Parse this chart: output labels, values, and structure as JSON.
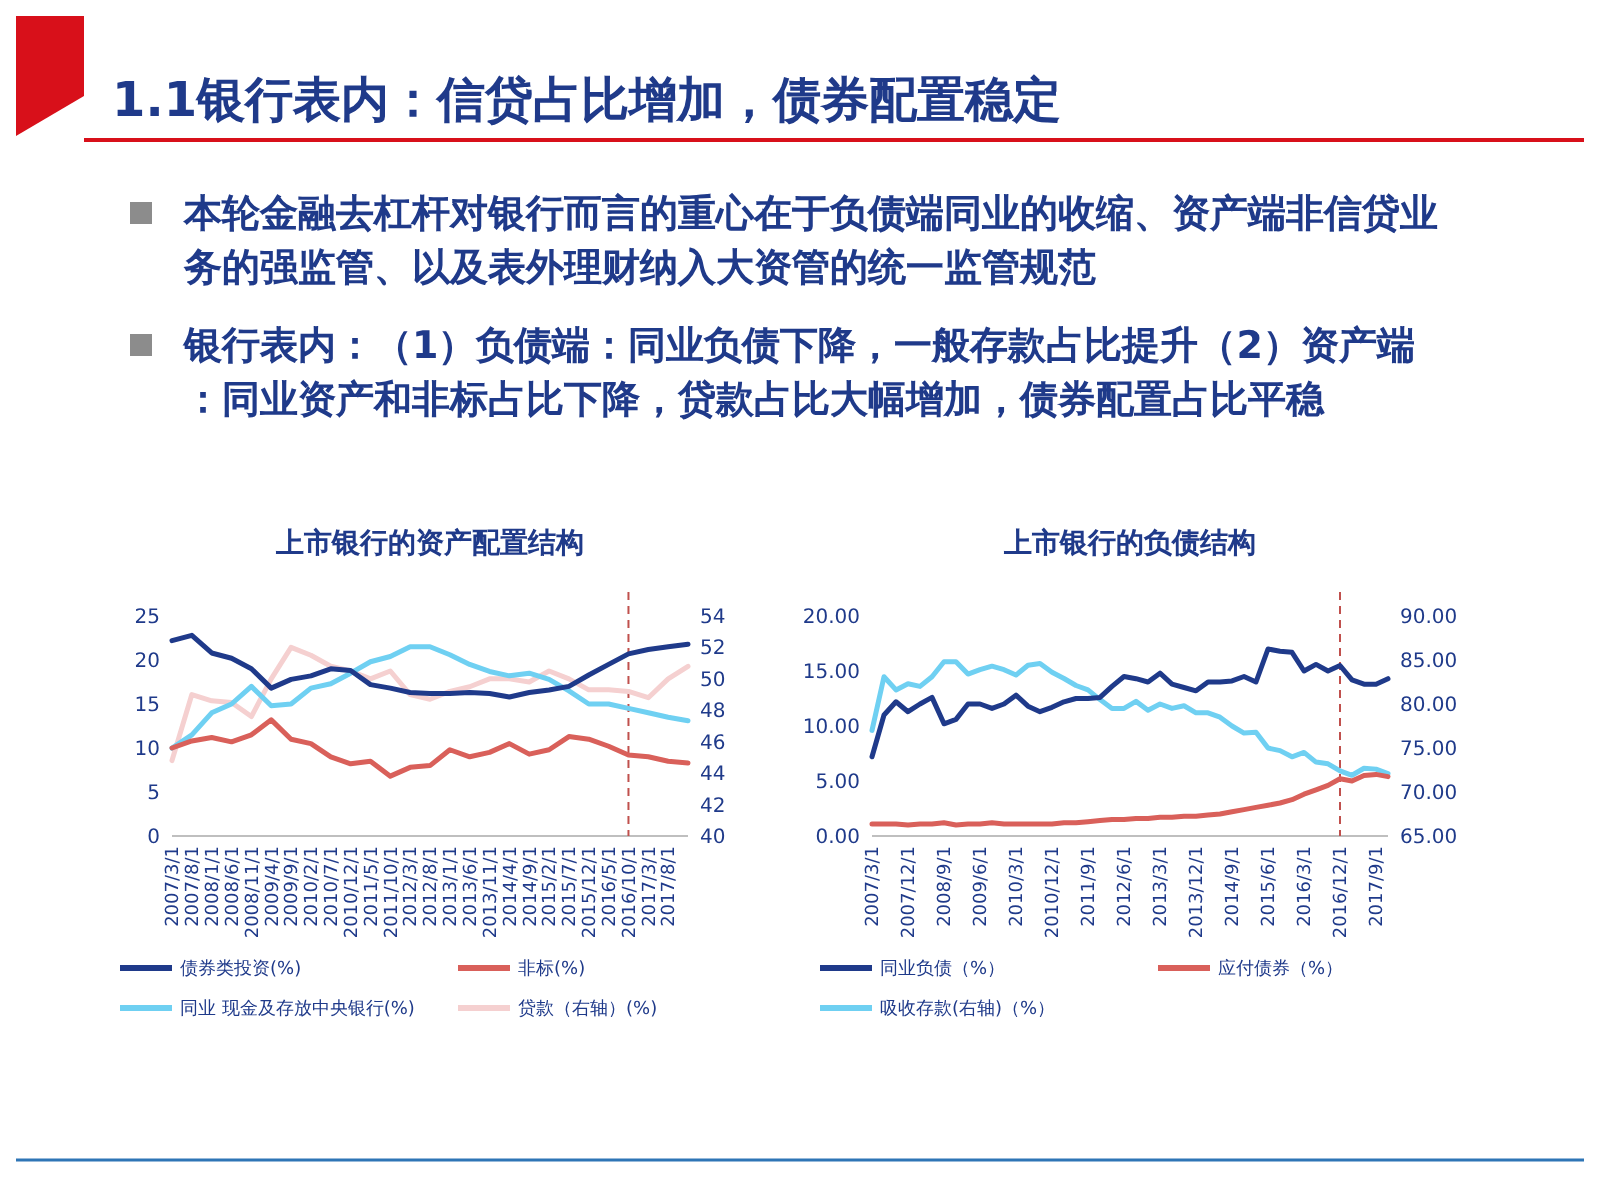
{
  "chart_data": [
    {
      "type": "other",
      "title": "1.1银行表内：信贷占比增加，债券配置稳定",
      "annotations": [
        "本轮金融去杠杆对银行而言的重心在于负债端同业的收缩、资产端非信贷业务的强监管、以及表外理财纳入大资管的统一监管规范",
        "银行表内：（1）负债端：同业负债下降，一般存款占比提升（2）资产端：同业资产和非标占比下降，贷款占比大幅增加，债券配置占比平稳"
      ]
    },
    {
      "type": "line",
      "title": "上市银行的资产配置结构",
      "categories": [
        "2007/3/1",
        "2007/8/1",
        "2008/1/1",
        "2008/6/1",
        "2008/11/1",
        "2009/4/1",
        "2009/9/1",
        "2010/2/1",
        "2010/7/1",
        "2010/12/1",
        "2011/5/1",
        "2011/10/1",
        "2012/3/1",
        "2012/8/1",
        "2013/1/1",
        "2013/6/1",
        "2013/11/1",
        "2014/4/1",
        "2014/9/1",
        "2015/2/1",
        "2015/7/1",
        "2015/12/1",
        "2016/5/1",
        "2016/10/1",
        "2017/3/1",
        "2017/8/1",
        null
      ],
      "series": [
        {
          "name": "债券类投资(%)",
          "color": "#1f3a8a",
          "values": [
            22.2,
            22.8,
            20.8,
            20.2,
            19,
            16.8,
            17.8,
            18.2,
            19,
            18.8,
            17.2,
            16.8,
            16.3,
            16.2,
            16.2,
            16.3,
            16.2,
            15.8,
            16.3,
            16.6,
            17,
            18.3,
            19.5,
            20.7,
            21.2,
            21.5,
            21.8
          ]
        },
        {
          "name": "非标(%)",
          "color": "#d9605a",
          "values": [
            10,
            10.8,
            11.2,
            10.7,
            11.5,
            13.2,
            11,
            10.5,
            9,
            8.2,
            8.5,
            6.8,
            7.8,
            8,
            9.8,
            9,
            9.5,
            10.5,
            9.3,
            9.8,
            11.3,
            11,
            10.2,
            9.2,
            9,
            8.5,
            8.3
          ]
        },
        {
          "name": "同业 现金及存放中央银行(%)",
          "color": "#6fd0f2",
          "values": [
            10,
            11.5,
            14,
            15,
            17,
            14.8,
            15,
            16.8,
            17.3,
            18.5,
            19.8,
            20.4,
            21.5,
            21.5,
            20.6,
            19.5,
            18.7,
            18.2,
            18.5,
            17.8,
            16.5,
            15,
            15,
            14.5,
            14,
            13.5,
            13.1
          ]
        },
        {
          "name": "贷款（右轴）(%)",
          "color": "#f5d0d0",
          "axis": "y2",
          "values": [
            44.8,
            49,
            48.6,
            48.5,
            47.6,
            50,
            52,
            51.5,
            50.8,
            50.5,
            50,
            50.5,
            49,
            48.7,
            49.2,
            49.5,
            50,
            50,
            49.8,
            50.5,
            50,
            49.3,
            49.3,
            49.2,
            48.8,
            50,
            50.8
          ]
        }
      ],
      "ylim": [
        0,
        25
      ],
      "yticks": [
        0,
        5,
        10,
        15,
        20,
        25
      ],
      "y2lim": [
        40,
        54
      ],
      "y2ticks": [
        40,
        42,
        44,
        46,
        48,
        50,
        52,
        54
      ],
      "ref_lines": [
        {
          "axis": "x",
          "value": "2016/10/1",
          "color": "#c0504d",
          "line_style": "dashed"
        }
      ],
      "legend": "bottom"
    },
    {
      "type": "line",
      "title": "上市银行的负债结构",
      "categories": [
        "2007/3/1",
        null,
        null,
        "2007/12/1",
        null,
        null,
        "2008/9/1",
        null,
        null,
        "2009/6/1",
        null,
        null,
        "2010/3/1",
        null,
        null,
        "2010/12/1",
        null,
        null,
        "2011/9/1",
        null,
        null,
        "2012/6/1",
        null,
        null,
        "2013/3/1",
        null,
        null,
        "2013/12/1",
        null,
        null,
        "2014/9/1",
        null,
        null,
        "2015/6/1",
        null,
        null,
        "2016/3/1",
        null,
        null,
        "2016/12/1",
        null,
        null,
        "2017/9/1",
        null
      ],
      "series": [
        {
          "name": "同业负债（%）",
          "color": "#1f3a8a",
          "values": [
            7.2,
            11,
            12.2,
            11.3,
            12,
            12.6,
            10.2,
            10.6,
            12,
            12,
            11.6,
            12,
            12.8,
            11.8,
            11.3,
            11.7,
            12.2,
            12.5,
            12.5,
            12.6,
            13.6,
            14.5,
            14.3,
            14,
            14.8,
            13.8,
            13.5,
            13.2,
            14,
            14,
            14.1,
            14.5,
            14,
            17,
            16.8,
            16.7,
            15,
            15.6,
            15,
            15.5,
            14.2,
            13.8,
            13.8,
            14.3
          ]
        },
        {
          "name": "应付债券（%）",
          "color": "#d9605a",
          "values": [
            1.1,
            1.1,
            1.1,
            1,
            1.1,
            1.1,
            1.2,
            1,
            1.1,
            1.1,
            1.2,
            1.1,
            1.1,
            1.1,
            1.1,
            1.1,
            1.2,
            1.2,
            1.3,
            1.4,
            1.5,
            1.5,
            1.6,
            1.6,
            1.7,
            1.7,
            1.8,
            1.8,
            1.9,
            2,
            2.2,
            2.4,
            2.6,
            2.8,
            3,
            3.3,
            3.8,
            4.2,
            4.6,
            5.2,
            5,
            5.5,
            5.6,
            5.4
          ]
        },
        {
          "name": "吸收存款(右轴)（%）",
          "color": "#6fd0f2",
          "axis": "y2",
          "values": [
            77,
            83.1,
            81.6,
            82.3,
            82,
            83.1,
            84.8,
            84.8,
            83.4,
            83.9,
            84.3,
            83.9,
            83.3,
            84.4,
            84.6,
            83.6,
            82.9,
            82.1,
            81.6,
            80.5,
            79.5,
            79.5,
            80.3,
            79.3,
            80,
            79.5,
            79.8,
            79,
            79,
            78.5,
            77.5,
            76.7,
            76.8,
            75,
            74.7,
            74,
            74.5,
            73.4,
            73.2,
            72.4,
            71.9,
            72.7,
            72.6,
            72.1
          ]
        }
      ],
      "ylim": [
        0,
        20
      ],
      "yticks": [
        {
          "value": 0,
          "label": "0.00"
        },
        {
          "value": 5,
          "label": "5.00"
        },
        {
          "value": 10,
          "label": "10.00"
        },
        {
          "value": 15,
          "label": "15.00"
        },
        {
          "value": 20,
          "label": "20.00"
        }
      ],
      "y2lim": [
        65,
        90
      ],
      "y2ticks": [
        {
          "value": 65,
          "label": "65.00"
        },
        {
          "value": 70,
          "label": "70.00"
        },
        {
          "value": 75,
          "label": "75.00"
        },
        {
          "value": 80,
          "label": "80.00"
        },
        {
          "value": 85,
          "label": "85.00"
        },
        {
          "value": 90,
          "label": "90.00"
        }
      ],
      "ref_lines": [
        {
          "axis": "x",
          "value": "2016/12/1",
          "color": "#c0504d",
          "line_style": "dashed"
        }
      ],
      "legend": "bottom"
    }
  ]
}
